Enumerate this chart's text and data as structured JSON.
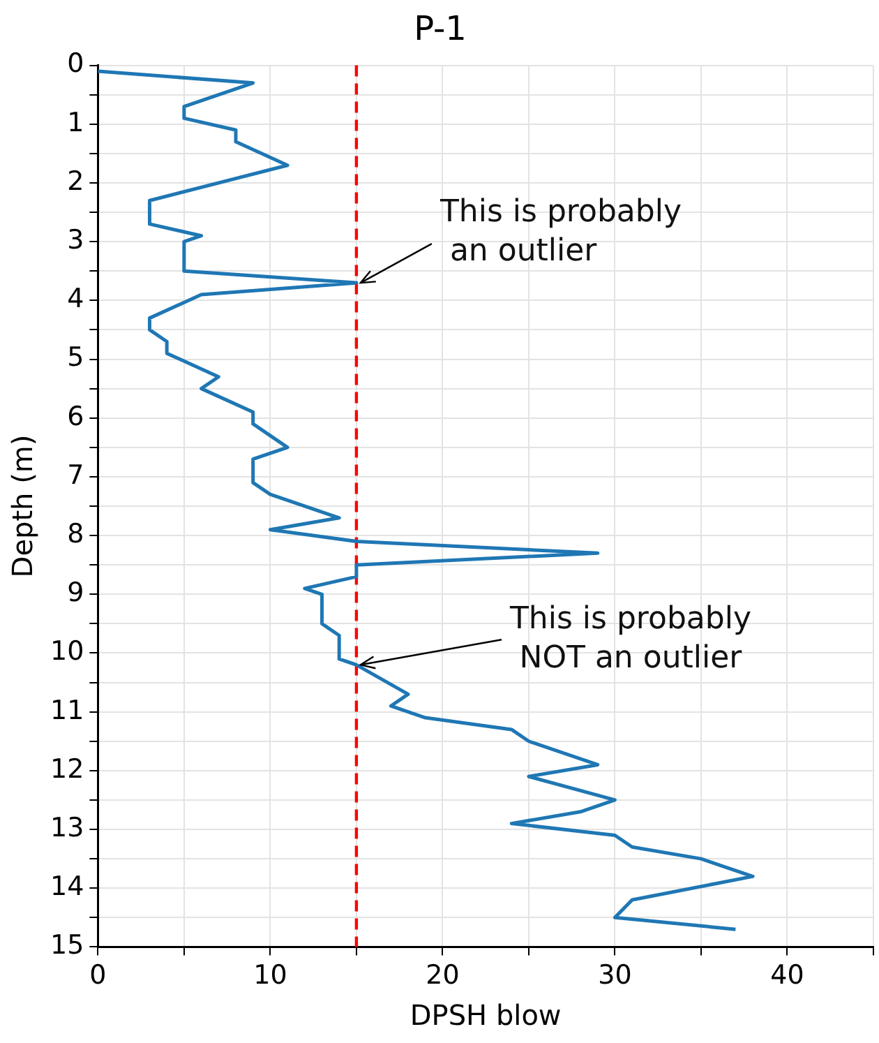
{
  "chart_data": {
    "type": "line",
    "title": "P-1",
    "xlabel": "DPSH blow",
    "ylabel": "Depth (m)",
    "series": [
      {
        "color": "#1f77b4",
        "x": [
          0,
          9,
          5,
          5,
          8,
          8,
          11,
          3,
          3,
          6,
          5,
          5,
          15,
          6,
          3,
          3,
          4,
          4,
          7,
          6,
          9,
          9,
          11,
          9,
          9,
          10,
          14,
          10,
          15,
          29,
          15,
          15,
          12,
          13,
          13,
          14,
          14,
          15,
          18,
          17,
          19,
          24,
          25,
          29,
          25,
          30,
          28,
          24,
          30,
          31,
          35,
          36,
          38,
          31,
          30,
          37
        ],
        "values": [
          0.1,
          0.3,
          0.7,
          0.9,
          1.1,
          1.3,
          1.7,
          2.3,
          2.7,
          2.9,
          3.0,
          3.5,
          3.7,
          3.9,
          4.3,
          4.5,
          4.7,
          4.9,
          5.3,
          5.5,
          5.9,
          6.1,
          6.5,
          6.7,
          7.1,
          7.3,
          7.7,
          7.9,
          8.1,
          8.3,
          8.5,
          8.7,
          8.9,
          9.0,
          9.5,
          9.7,
          10.1,
          10.2,
          10.7,
          10.9,
          11.1,
          11.3,
          11.5,
          11.9,
          12.1,
          12.5,
          12.7,
          12.9,
          13.1,
          13.3,
          13.5,
          13.6,
          13.8,
          14.2,
          14.5,
          14.7
        ]
      }
    ],
    "xlim": [
      0,
      45
    ],
    "xticks": [
      0,
      {
        "value": 5,
        "label": null
      },
      10,
      {
        "value": 15,
        "label": null
      },
      20,
      {
        "value": 25,
        "label": null
      },
      30,
      {
        "value": 35,
        "label": null
      },
      40,
      {
        "value": 45,
        "label": null
      }
    ],
    "ylim": [
      15,
      0
    ],
    "yticks": [
      0,
      {
        "value": 0.5,
        "label": null
      },
      1,
      {
        "value": 1.5,
        "label": null
      },
      2,
      {
        "value": 2.5,
        "label": null
      },
      3,
      {
        "value": 3.5,
        "label": null
      },
      4,
      {
        "value": 4.5,
        "label": null
      },
      5,
      {
        "value": 5.5,
        "label": null
      },
      6,
      {
        "value": 6.5,
        "label": null
      },
      7,
      {
        "value": 7.5,
        "label": null
      },
      8,
      {
        "value": 8.5,
        "label": null
      },
      9,
      {
        "value": 9.5,
        "label": null
      },
      10,
      {
        "value": 10.5,
        "label": null
      },
      11,
      {
        "value": 11.5,
        "label": null
      },
      12,
      {
        "value": 12.5,
        "label": null
      },
      13,
      {
        "value": 13.5,
        "label": null
      },
      14,
      {
        "value": 14.5,
        "label": null
      },
      15
    ],
    "grid": true,
    "legend": false,
    "marker": "none",
    "line_style": "solid",
    "ref_lines": [
      {
        "axis": "x",
        "value": 15,
        "color": "#ff0000",
        "line_style": "dashed"
      }
    ],
    "annotations": [
      {
        "text": "This is probably\n an outlier",
        "x": 15,
        "y": 3.7
      },
      {
        "text": "This is probably\nNOT an outlier",
        "x": 15,
        "y": 10.2
      }
    ]
  }
}
